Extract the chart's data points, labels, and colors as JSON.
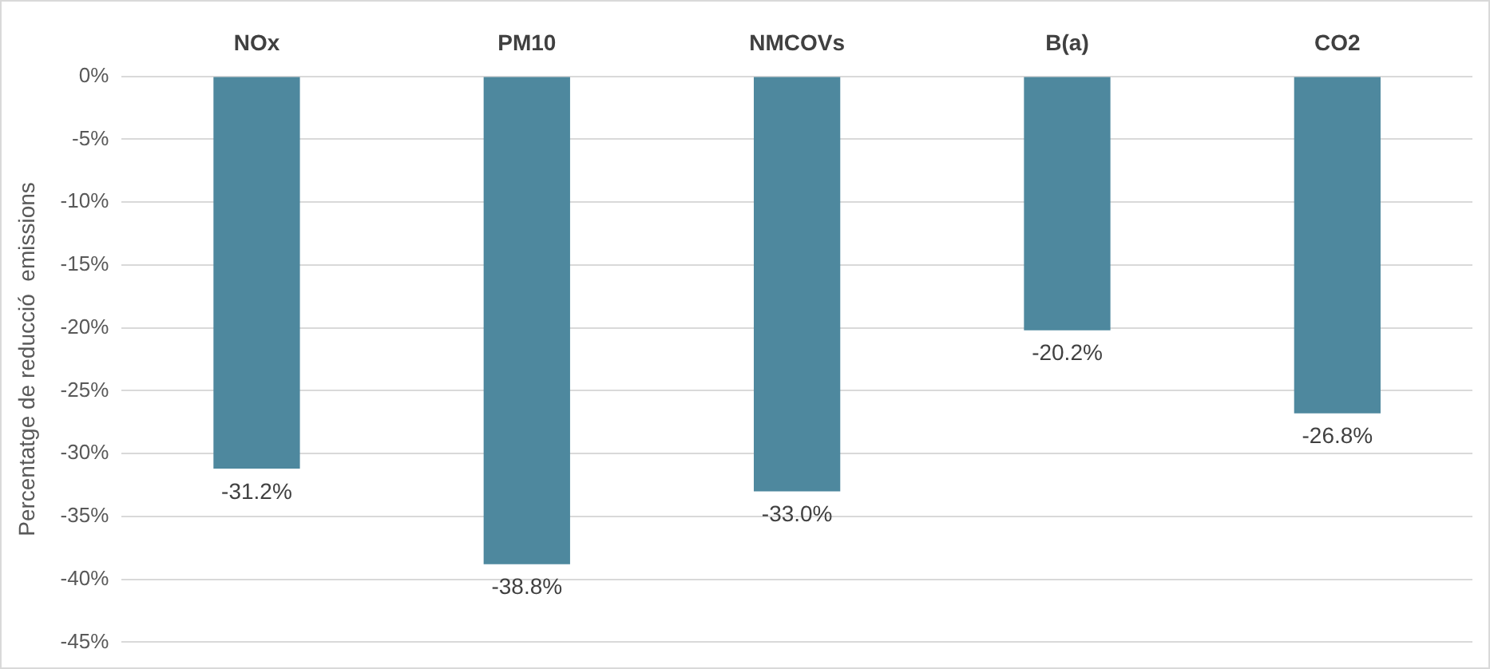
{
  "chart_data": {
    "type": "bar",
    "ylabel": "Percentatge de reducció  emissions",
    "categories": [
      "NOx",
      "PM10",
      "NMCOVs",
      "B(a)",
      "CO2"
    ],
    "values": [
      -31.2,
      -38.8,
      -33.0,
      -20.2,
      -26.8
    ],
    "value_labels": [
      "-31.2%",
      "-38.8%",
      "-33.0%",
      "-20.2%",
      "-26.8%"
    ],
    "color": "#4e889e",
    "ylim": [
      -45,
      0
    ],
    "yticks": [
      {
        "value": 0,
        "label": "0%"
      },
      {
        "value": -5,
        "label": "-5%"
      },
      {
        "value": -10,
        "label": "-10%"
      },
      {
        "value": -15,
        "label": "-15%"
      },
      {
        "value": -20,
        "label": "-20%"
      },
      {
        "value": -25,
        "label": "-25%"
      },
      {
        "value": -30,
        "label": "-30%"
      },
      {
        "value": -35,
        "label": "-35%"
      },
      {
        "value": -40,
        "label": "-40%"
      },
      {
        "value": -45,
        "label": "-45%"
      }
    ],
    "grid": "y",
    "legend": false
  }
}
